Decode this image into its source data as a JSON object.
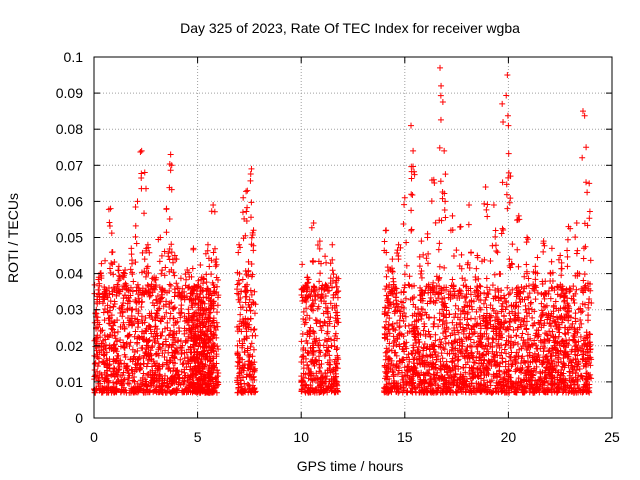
{
  "chart_data": {
    "type": "scatter",
    "title": "Day 325 of 2023, Rate Of TEC Index for receiver wgba",
    "xlabel": "GPS time / hours",
    "ylabel": "ROTI / TECUs",
    "xlim": [
      0,
      25
    ],
    "ylim": [
      0,
      0.1
    ],
    "xticks": [
      0,
      5,
      10,
      15,
      20,
      25
    ],
    "xtick_labels": [
      "0",
      "5",
      "10",
      "15",
      "20",
      "25"
    ],
    "yticks": [
      0,
      0.01,
      0.02,
      0.03,
      0.04,
      0.05,
      0.06,
      0.07,
      0.08,
      0.09,
      0.1
    ],
    "ytick_labels": [
      "0",
      "0.01",
      "0.02",
      "0.03",
      "0.04",
      "0.05",
      "0.06",
      "0.07",
      "0.08",
      "0.09",
      "0.1"
    ],
    "grid": true,
    "marker": "+",
    "color": "#ff0000",
    "series": [
      {
        "x": [
          0.1,
          0.3,
          0.5,
          0.8,
          0.9,
          1.2,
          1.5,
          1.8,
          2.1,
          2.3,
          2.45,
          2.6,
          2.9,
          3.2,
          3.5,
          3.7,
          3.75,
          3.9,
          4.2,
          4.5,
          4.8,
          5.2,
          5.5,
          5.75,
          5.9,
          7.0,
          7.2,
          7.4,
          7.6,
          7.7,
          10.1,
          10.3,
          10.6,
          10.9,
          11.2,
          11.5,
          11.7,
          14.1,
          14.4,
          14.7,
          15.0,
          15.3,
          15.4,
          15.8,
          16.1,
          16.4,
          16.7,
          16.75,
          16.9,
          17.3,
          17.7,
          18.1,
          18.5,
          18.9,
          19.3,
          19.7,
          19.95,
          20.0,
          20.1,
          20.5,
          20.9,
          21.3,
          21.7,
          22.1,
          22.5,
          22.9,
          23.3,
          23.6,
          23.75,
          23.9
        ],
        "y": [
          0.028,
          0.04,
          0.033,
          0.058,
          0.046,
          0.042,
          0.041,
          0.047,
          0.06,
          0.074,
          0.068,
          0.048,
          0.039,
          0.05,
          0.058,
          0.073,
          0.07,
          0.045,
          0.033,
          0.041,
          0.047,
          0.039,
          0.048,
          0.059,
          0.044,
          0.048,
          0.061,
          0.063,
          0.069,
          0.052,
          0.036,
          0.039,
          0.054,
          0.049,
          0.043,
          0.048,
          0.039,
          0.052,
          0.044,
          0.048,
          0.061,
          0.081,
          0.074,
          0.049,
          0.051,
          0.066,
          0.097,
          0.092,
          0.074,
          0.056,
          0.053,
          0.059,
          0.045,
          0.064,
          0.059,
          0.087,
          0.095,
          0.081,
          0.067,
          0.056,
          0.05,
          0.042,
          0.049,
          0.047,
          0.045,
          0.053,
          0.054,
          0.085,
          0.075,
          0.065
        ]
      }
    ],
    "data_segments_hours": [
      [
        0,
        5.8
      ],
      [
        4.7,
        6.0
      ],
      [
        6.9,
        7.8
      ],
      [
        10.0,
        11.8
      ],
      [
        14.0,
        24.0
      ]
    ],
    "envelope_note_min_values": [
      0.005,
      0.005,
      0.005,
      0.005,
      0.004
    ]
  }
}
